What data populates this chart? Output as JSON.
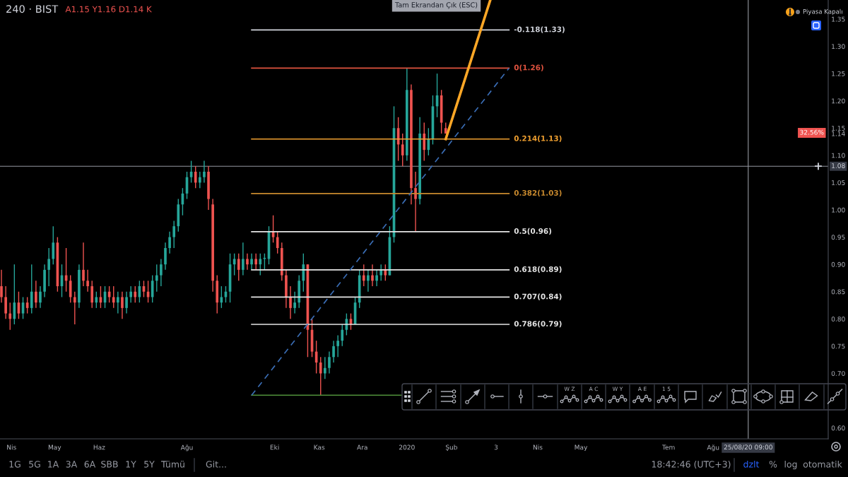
{
  "chart_data": {
    "type": "candlestick",
    "title": "240 · BIST",
    "subtitle": "A1.15 Y1.16 D1.14 K",
    "x": [
      "2019-03-25",
      "2019-03-28",
      "2019-03-31",
      "2019-04-03",
      "2019-04-06",
      "2019-04-09",
      "2019-04-12",
      "2019-04-15",
      "2019-04-18",
      "2019-04-21",
      "2019-04-24",
      "2019-04-27",
      "2019-04-30",
      "2019-05-03",
      "2019-05-06",
      "2019-05-09",
      "2019-05-12",
      "2019-05-15",
      "2019-05-18",
      "2019-05-21",
      "2019-05-24",
      "2019-05-27",
      "2019-05-30",
      "2019-06-02",
      "2019-06-05",
      "2019-06-08",
      "2019-06-11",
      "2019-06-14",
      "2019-06-17",
      "2019-06-20",
      "2019-06-23",
      "2019-06-26",
      "2019-06-29",
      "2019-07-02",
      "2019-07-05",
      "2019-07-08",
      "2019-07-11",
      "2019-07-14",
      "2019-07-17",
      "2019-07-20",
      "2019-07-23",
      "2019-07-26",
      "2019-07-29",
      "2019-08-01",
      "2019-08-04",
      "2019-08-07",
      "2019-08-10",
      "2019-08-13",
      "2019-08-16",
      "2019-08-19",
      "2019-08-22",
      "2019-08-25",
      "2019-08-28",
      "2019-08-31",
      "2019-09-03",
      "2019-09-06",
      "2019-09-09",
      "2019-09-12",
      "2019-09-15",
      "2019-09-18",
      "2019-09-21",
      "2019-09-24",
      "2019-09-27",
      "2019-09-30",
      "2019-10-03",
      "2019-10-06",
      "2019-10-09",
      "2019-10-12",
      "2019-10-15",
      "2019-10-18",
      "2019-10-21",
      "2019-10-24",
      "2019-10-27",
      "2019-10-30",
      "2019-11-02",
      "2019-11-05",
      "2019-11-08",
      "2019-11-11",
      "2019-11-14",
      "2019-11-17",
      "2019-11-20",
      "2019-11-23",
      "2019-11-26",
      "2019-11-29",
      "2019-12-02",
      "2019-12-05",
      "2019-12-08",
      "2019-12-11",
      "2019-12-14",
      "2019-12-17",
      "2019-12-20",
      "2019-12-23",
      "2019-12-26",
      "2019-12-29",
      "2020-01-01",
      "2020-01-04",
      "2020-01-07",
      "2020-01-10",
      "2020-01-13",
      "2020-01-16",
      "2020-01-19",
      "2020-01-22",
      "2020-01-25",
      "2020-01-28"
    ],
    "ohlc": [
      [
        0.86,
        0.89,
        0.83,
        0.84
      ],
      [
        0.84,
        0.86,
        0.8,
        0.81
      ],
      [
        0.81,
        0.83,
        0.78,
        0.8
      ],
      [
        0.8,
        0.9,
        0.79,
        0.83
      ],
      [
        0.83,
        0.85,
        0.8,
        0.81
      ],
      [
        0.81,
        0.84,
        0.8,
        0.83
      ],
      [
        0.83,
        0.84,
        0.81,
        0.82
      ],
      [
        0.82,
        0.9,
        0.81,
        0.85
      ],
      [
        0.85,
        0.87,
        0.82,
        0.83
      ],
      [
        0.83,
        0.86,
        0.82,
        0.85
      ],
      [
        0.85,
        0.9,
        0.84,
        0.89
      ],
      [
        0.89,
        0.93,
        0.86,
        0.91
      ],
      [
        0.91,
        0.97,
        0.9,
        0.94
      ],
      [
        0.94,
        0.95,
        0.85,
        0.86
      ],
      [
        0.86,
        0.9,
        0.84,
        0.88
      ],
      [
        0.88,
        0.93,
        0.85,
        0.87
      ],
      [
        0.87,
        0.88,
        0.83,
        0.84
      ],
      [
        0.84,
        0.85,
        0.79,
        0.83
      ],
      [
        0.83,
        0.9,
        0.82,
        0.89
      ],
      [
        0.89,
        0.94,
        0.86,
        0.87
      ],
      [
        0.87,
        0.89,
        0.85,
        0.86
      ],
      [
        0.86,
        0.87,
        0.82,
        0.83
      ],
      [
        0.83,
        0.85,
        0.82,
        0.84
      ],
      [
        0.84,
        0.86,
        0.82,
        0.83
      ],
      [
        0.83,
        0.86,
        0.82,
        0.85
      ],
      [
        0.85,
        0.86,
        0.83,
        0.84
      ],
      [
        0.84,
        0.86,
        0.82,
        0.83
      ],
      [
        0.83,
        0.85,
        0.81,
        0.84
      ],
      [
        0.84,
        0.85,
        0.8,
        0.82
      ],
      [
        0.82,
        0.85,
        0.81,
        0.84
      ],
      [
        0.84,
        0.86,
        0.83,
        0.85
      ],
      [
        0.85,
        0.86,
        0.83,
        0.84
      ],
      [
        0.84,
        0.87,
        0.83,
        0.86
      ],
      [
        0.86,
        0.87,
        0.84,
        0.85
      ],
      [
        0.85,
        0.87,
        0.83,
        0.84
      ],
      [
        0.84,
        0.88,
        0.83,
        0.87
      ],
      [
        0.87,
        0.9,
        0.85,
        0.88
      ],
      [
        0.88,
        0.91,
        0.86,
        0.9
      ],
      [
        0.9,
        0.94,
        0.89,
        0.93
      ],
      [
        0.93,
        0.96,
        0.92,
        0.95
      ],
      [
        0.95,
        0.98,
        0.93,
        0.97
      ],
      [
        0.97,
        1.02,
        0.96,
        1.01
      ],
      [
        1.01,
        1.04,
        0.99,
        1.03
      ],
      [
        1.03,
        1.07,
        1.02,
        1.06
      ],
      [
        1.06,
        1.09,
        1.05,
        1.07
      ],
      [
        1.07,
        1.08,
        1.04,
        1.05
      ],
      [
        1.05,
        1.07,
        1.04,
        1.06
      ],
      [
        1.06,
        1.09,
        1.05,
        1.07
      ],
      [
        1.07,
        1.08,
        1.0,
        1.02
      ],
      [
        1.01,
        1.02,
        0.85,
        0.87
      ],
      [
        0.87,
        0.88,
        0.81,
        0.83
      ],
      [
        0.83,
        0.86,
        0.82,
        0.84
      ],
      [
        0.84,
        0.86,
        0.83,
        0.85
      ],
      [
        0.85,
        0.92,
        0.83,
        0.9
      ],
      [
        0.9,
        0.92,
        0.88,
        0.91
      ],
      [
        0.91,
        0.92,
        0.87,
        0.89
      ],
      [
        0.89,
        0.94,
        0.88,
        0.91
      ],
      [
        0.91,
        0.92,
        0.89,
        0.9
      ],
      [
        0.9,
        0.92,
        0.89,
        0.91
      ],
      [
        0.91,
        0.92,
        0.89,
        0.9
      ],
      [
        0.9,
        0.92,
        0.88,
        0.91
      ],
      [
        0.91,
        0.92,
        0.89,
        0.91
      ],
      [
        0.91,
        0.97,
        0.9,
        0.96
      ],
      [
        0.96,
        0.99,
        0.94,
        0.95
      ],
      [
        0.95,
        0.96,
        0.92,
        0.93
      ],
      [
        0.93,
        0.94,
        0.87,
        0.88
      ],
      [
        0.88,
        0.89,
        0.82,
        0.84
      ],
      [
        0.84,
        0.86,
        0.8,
        0.82
      ],
      [
        0.82,
        0.85,
        0.81,
        0.83
      ],
      [
        0.83,
        0.88,
        0.82,
        0.87
      ],
      [
        0.87,
        0.92,
        0.85,
        0.9
      ],
      [
        0.9,
        0.9,
        0.73,
        0.78
      ],
      [
        0.78,
        0.8,
        0.73,
        0.74
      ],
      [
        0.74,
        0.76,
        0.7,
        0.72
      ],
      [
        0.72,
        0.73,
        0.66,
        0.7
      ],
      [
        0.7,
        0.73,
        0.69,
        0.71
      ],
      [
        0.71,
        0.74,
        0.7,
        0.73
      ],
      [
        0.73,
        0.76,
        0.72,
        0.75
      ],
      [
        0.75,
        0.77,
        0.73,
        0.76
      ],
      [
        0.76,
        0.79,
        0.75,
        0.78
      ],
      [
        0.78,
        0.81,
        0.77,
        0.8
      ],
      [
        0.8,
        0.81,
        0.78,
        0.79
      ],
      [
        0.79,
        0.84,
        0.79,
        0.83
      ],
      [
        0.83,
        0.89,
        0.82,
        0.88
      ],
      [
        0.88,
        0.9,
        0.86,
        0.87
      ],
      [
        0.87,
        0.89,
        0.85,
        0.88
      ],
      [
        0.88,
        0.9,
        0.86,
        0.87
      ],
      [
        0.87,
        0.89,
        0.86,
        0.88
      ],
      [
        0.88,
        0.9,
        0.87,
        0.89
      ],
      [
        0.89,
        0.9,
        0.87,
        0.88
      ],
      [
        0.88,
        0.97,
        0.88,
        0.95
      ],
      [
        0.95,
        1.19,
        0.94,
        1.15
      ],
      [
        1.15,
        1.17,
        1.09,
        1.12
      ],
      [
        1.12,
        1.14,
        1.08,
        1.1
      ],
      [
        1.1,
        1.26,
        1.09,
        1.22
      ],
      [
        1.22,
        1.23,
        1.01,
        1.04
      ],
      [
        1.04,
        1.07,
        0.96,
        1.02
      ],
      [
        1.02,
        1.17,
        1.01,
        1.14
      ],
      [
        1.14,
        1.16,
        1.09,
        1.11
      ],
      [
        1.11,
        1.15,
        1.1,
        1.13
      ],
      [
        1.13,
        1.21,
        1.12,
        1.19
      ],
      [
        1.19,
        1.25,
        1.17,
        1.21
      ],
      [
        1.21,
        1.22,
        1.14,
        1.16
      ],
      [
        1.15,
        1.16,
        1.14,
        1.14
      ]
    ],
    "colors": [
      "#ef5350",
      "#ef5350",
      "#ef5350",
      "#26a69a",
      "#ef5350",
      "#26a69a",
      "#ef5350",
      "#26a69a",
      "#ef5350",
      "#26a69a",
      "#26a69a",
      "#26a69a",
      "#26a69a",
      "#ef5350",
      "#26a69a",
      "#ef5350",
      "#ef5350",
      "#ef5350",
      "#26a69a",
      "#ef5350",
      "#ef5350",
      "#ef5350",
      "#26a69a",
      "#ef5350",
      "#26a69a",
      "#ef5350",
      "#ef5350",
      "#26a69a",
      "#ef5350",
      "#26a69a",
      "#26a69a",
      "#ef5350",
      "#26a69a",
      "#ef5350",
      "#ef5350",
      "#26a69a",
      "#26a69a",
      "#26a69a",
      "#26a69a",
      "#26a69a",
      "#26a69a",
      "#26a69a",
      "#26a69a",
      "#26a69a",
      "#26a69a",
      "#ef5350",
      "#26a69a",
      "#26a69a",
      "#ef5350",
      "#ef5350",
      "#ef5350",
      "#26a69a",
      "#26a69a",
      "#26a69a",
      "#26a69a",
      "#ef5350",
      "#26a69a",
      "#ef5350",
      "#26a69a",
      "#ef5350",
      "#26a69a",
      "#26a69a",
      "#26a69a",
      "#ef5350",
      "#ef5350",
      "#ef5350",
      "#ef5350",
      "#ef5350",
      "#26a69a",
      "#26a69a",
      "#26a69a",
      "#ef5350",
      "#ef5350",
      "#ef5350",
      "#ef5350",
      "#26a69a",
      "#26a69a",
      "#26a69a",
      "#26a69a",
      "#26a69a",
      "#26a69a",
      "#ef5350",
      "#26a69a",
      "#26a69a",
      "#ef5350",
      "#26a69a",
      "#ef5350",
      "#26a69a",
      "#26a69a",
      "#ef5350",
      "#26a69a",
      "#26a69a",
      "#ef5350",
      "#ef5350",
      "#26a69a",
      "#ef5350",
      "#ef5350",
      "#26a69a",
      "#ef5350",
      "#26a69a",
      "#26a69a",
      "#26a69a",
      "#ef5350",
      "#ef5350"
    ],
    "series": [
      {
        "type": "line",
        "name": "-0.118(1.33)",
        "color": "#d1d4dc",
        "x": [
          "2019-09-15",
          "2020-03-12"
        ],
        "values": [
          1.33,
          1.33
        ]
      },
      {
        "type": "line",
        "name": "0(1.26)",
        "color": "#e0533f",
        "x": [
          "2019-09-15",
          "2020-03-12"
        ],
        "values": [
          1.26,
          1.26
        ]
      },
      {
        "type": "line",
        "name": "0.214(1.13)",
        "color": "#f0a030",
        "x": [
          "2019-09-15",
          "2020-03-12"
        ],
        "values": [
          1.13,
          1.13
        ]
      },
      {
        "type": "line",
        "name": "0.382(1.03)",
        "color": "#c98a2e",
        "x": [
          "2019-09-15",
          "2020-03-12"
        ],
        "values": [
          1.03,
          1.03
        ]
      },
      {
        "type": "line",
        "name": "0.5(0.96)",
        "color": "#e6e6e6",
        "x": [
          "2019-09-15",
          "2020-03-12"
        ],
        "values": [
          0.96,
          0.96
        ]
      },
      {
        "type": "line",
        "name": "0.618(0.89)",
        "color": "#e6e6e6",
        "x": [
          "2019-09-15",
          "2020-03-12"
        ],
        "values": [
          0.89,
          0.89
        ]
      },
      {
        "type": "line",
        "name": "0.707(0.84)",
        "color": "#e6e6e6",
        "x": [
          "2019-09-15",
          "2020-03-12"
        ],
        "values": [
          0.84,
          0.84
        ]
      },
      {
        "type": "line",
        "name": "0.786(0.79)",
        "color": "#e6e6e6",
        "x": [
          "2019-09-15",
          "2020-03-12"
        ],
        "values": [
          0.79,
          0.79
        ]
      },
      {
        "type": "line",
        "color": "#4f8f3a",
        "x": [
          "2019-09-15",
          "2019-12-28"
        ],
        "values": [
          0.66,
          0.66
        ]
      },
      {
        "type": "line",
        "color": "#3a6db5",
        "line_style": "dashed",
        "x": [
          "2019-09-15",
          "2020-03-12"
        ],
        "values": [
          0.66,
          1.26
        ]
      },
      {
        "type": "line",
        "color": "#ffa726",
        "x": [
          "2020-01-28",
          "2020-02-28"
        ],
        "values": [
          1.13,
          1.385
        ]
      }
    ],
    "xlim": [
      "2019-03-24",
      "2020-10-20"
    ],
    "xticks": [
      {
        "value": "2019-04-01",
        "label": "Nis"
      },
      {
        "value": "2019-05-01",
        "label": "May"
      },
      {
        "value": "2019-06-01",
        "label": "Haz"
      },
      {
        "value": "2019-08-01",
        "label": "Ağu"
      },
      {
        "value": "2019-10-01",
        "label": "Eki"
      },
      {
        "value": "2019-11-01",
        "label": "Kas"
      },
      {
        "value": "2019-12-01",
        "label": "Ara"
      },
      {
        "value": "2020-01-01",
        "label": "2020"
      },
      {
        "value": "2020-02-01",
        "label": "Şub"
      },
      {
        "value": "2020-03-03",
        "label": "3"
      },
      {
        "value": "2020-04-01",
        "label": "Nis"
      },
      {
        "value": "2020-05-01",
        "label": "May"
      },
      {
        "value": "2020-07-01",
        "label": "Tem"
      },
      {
        "value": "2020-08-01",
        "label": "Ağu"
      }
    ],
    "ylim": [
      0.58,
      1.385
    ],
    "yticks": [
      {
        "value": 0.6,
        "label": "0.60"
      },
      {
        "value": 0.7,
        "label": "0.70"
      },
      0.75,
      {
        "value": 0.8,
        "label": "0.80"
      },
      0.85,
      {
        "value": 0.9,
        "label": "0.90"
      },
      0.95,
      {
        "value": 1.0,
        "label": "1.00"
      },
      1.05,
      {
        "value": 1.1,
        "label": "1.10"
      },
      {
        "value": 1.14,
        "label": "1.14"
      },
      1.15,
      {
        "value": 1.2,
        "label": "1.20"
      },
      1.25,
      {
        "value": 1.3,
        "label": "1.30"
      },
      1.35
    ],
    "ref_lines": [
      {
        "axis": "y",
        "value": 1.08,
        "label": "1.08",
        "color": "#9598a1"
      },
      {
        "axis": "x",
        "value": "2020-08-25T09:00",
        "label": "25/08/20 09:00",
        "color": "#9598a1"
      }
    ],
    "annotations": [
      "Tam Ekrandan Çık (ESC)",
      "Piyasa Kapalı",
      "W Z",
      "A C",
      "W Y",
      "A E",
      "1 5",
      "1G",
      "5G",
      "1A",
      "3A",
      "6A",
      "SBB",
      "1Y",
      "5Y",
      "Tümü",
      "Git...",
      "18:42:46 (UTC+3)",
      "dzlt",
      "%",
      "log",
      "otomatik",
      "32.56%"
    ]
  }
}
